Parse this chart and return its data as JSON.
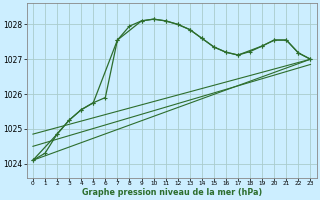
{
  "title": "Graphe pression niveau de la mer (hPa)",
  "background_color": "#cceeff",
  "grid_color": "#aacccc",
  "line_color": "#2d6e2d",
  "x_ticks": [
    0,
    1,
    2,
    3,
    4,
    5,
    6,
    7,
    8,
    9,
    10,
    11,
    12,
    13,
    14,
    15,
    16,
    17,
    18,
    19,
    20,
    21,
    22,
    23
  ],
  "ylim": [
    1023.6,
    1028.6
  ],
  "yticks": [
    1024,
    1025,
    1026,
    1027,
    1028
  ],
  "series1": {
    "x": [
      0,
      1,
      2,
      3,
      4,
      5,
      6,
      7,
      8,
      9,
      10,
      11,
      12,
      13,
      14,
      15,
      16,
      17,
      18,
      19,
      20,
      21,
      22,
      23
    ],
    "y": [
      1024.1,
      1024.3,
      1024.85,
      1025.25,
      1025.55,
      1025.75,
      1025.9,
      1027.55,
      1027.95,
      1028.1,
      1028.15,
      1028.1,
      1028.0,
      1027.85,
      1027.6,
      1027.35,
      1027.2,
      1027.12,
      1027.22,
      1027.38,
      1027.55,
      1027.55,
      1027.18,
      1027.0
    ]
  },
  "series2": {
    "x": [
      0,
      2,
      3,
      4,
      5,
      7,
      9,
      10,
      11,
      12,
      13,
      14,
      15,
      16,
      17,
      19,
      20,
      21,
      22,
      23
    ],
    "y": [
      1024.1,
      1024.85,
      1025.25,
      1025.55,
      1025.75,
      1027.55,
      1028.1,
      1028.15,
      1028.1,
      1028.0,
      1027.85,
      1027.6,
      1027.35,
      1027.2,
      1027.12,
      1027.38,
      1027.55,
      1027.55,
      1027.18,
      1027.0
    ]
  },
  "line3": {
    "x": [
      0,
      23
    ],
    "y": [
      1024.1,
      1027.0
    ]
  },
  "line4": {
    "x": [
      0,
      23
    ],
    "y": [
      1024.5,
      1026.85
    ]
  },
  "line5": {
    "x": [
      0,
      23
    ],
    "y": [
      1024.85,
      1027.0
    ]
  }
}
